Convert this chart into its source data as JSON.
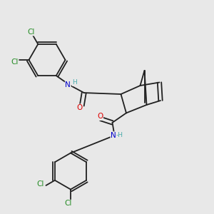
{
  "bg_color": "#e8e8e8",
  "bond_color": "#202020",
  "atom_colors": {
    "O": "#dd0000",
    "N": "#0000cc",
    "H": "#4aacac",
    "Cl": "#228B22"
  },
  "lw": 1.3,
  "doff": 0.008
}
